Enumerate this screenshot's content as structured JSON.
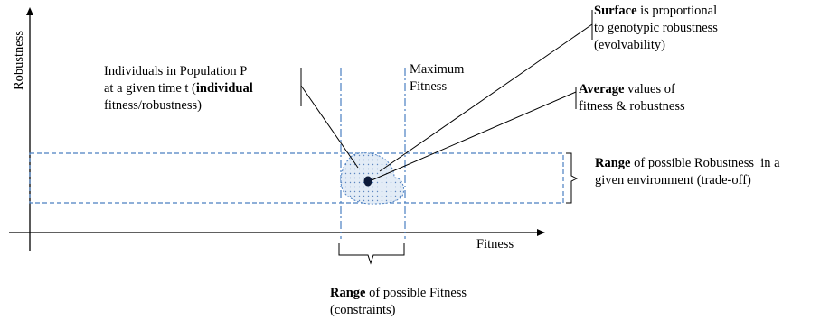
{
  "axes": {
    "x_label": "Fitness",
    "y_label": "Robustness"
  },
  "labels": {
    "individuals": {
      "line1": "Individuals in Population P",
      "line2_pre": "at a given time t (",
      "line2_bold": "individual",
      "line3": "fitness/robustness)"
    },
    "maximum_fitness": {
      "line1": "Maximum",
      "line2": "Fitness"
    },
    "surface": {
      "bold": "Surface",
      "line1_rest": " is proportional",
      "line2": "to genotypic robustness",
      "line3": "(evolvability)"
    },
    "average": {
      "bold": "Average",
      "line1_rest": " values of",
      "line2": "fitness & robustness"
    },
    "robustness_range": {
      "bold": "Range",
      "line1_rest": " of possible Robustness  in a",
      "line2": "given environment (trade-off)"
    },
    "fitness_range": {
      "bold": "Range",
      "line1_rest": " of possible Fitness",
      "line2": "(constraints)"
    }
  },
  "colors": {
    "dashed_lines": "#4a7fc1",
    "population_fill": "#dbe6f3",
    "axes": "#000000"
  }
}
